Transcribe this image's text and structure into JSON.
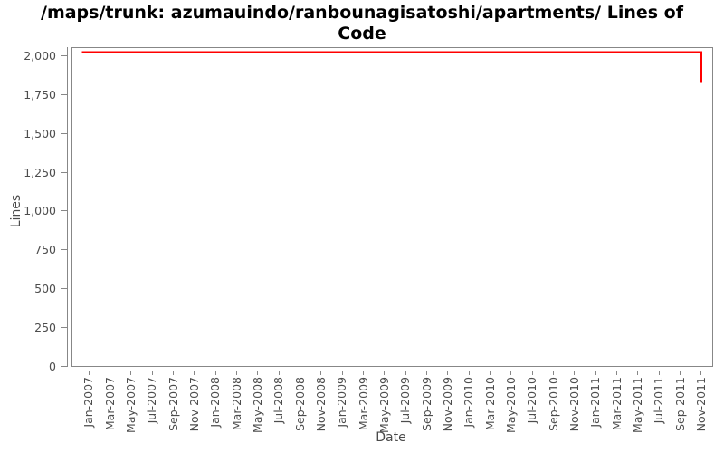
{
  "chart_title": {
    "lines": [
      "/maps/trunk: azumauindo/ranbounagisatoshi/apartments/ Lines of",
      "Code"
    ]
  },
  "chart_data": {
    "type": "line",
    "title": "/maps/trunk: azumauindo/ranbounagisatoshi/apartments/ Lines of Code",
    "xlabel": "Date",
    "ylabel": "Lines",
    "grid": "off",
    "legend": "none",
    "ylim": [
      0,
      2055
    ],
    "y_tick_labels": [
      "0",
      "250",
      "500",
      "750",
      "1,000",
      "1,250",
      "1,500",
      "1,750",
      "2,000"
    ],
    "y_tick_values": [
      0,
      250,
      500,
      750,
      1000,
      1250,
      1500,
      1750,
      2000
    ],
    "x_tick_labels": [
      "Jan-2007",
      "Mar-2007",
      "May-2007",
      "Jul-2007",
      "Sep-2007",
      "Nov-2007",
      "Jan-2008",
      "Mar-2008",
      "May-2008",
      "Jul-2008",
      "Sep-2008",
      "Nov-2008",
      "Jan-2009",
      "Mar-2009",
      "May-2009",
      "Jul-2009",
      "Sep-2009",
      "Nov-2009",
      "Jan-2010",
      "Mar-2010",
      "May-2010",
      "Jul-2010",
      "Sep-2010",
      "Nov-2010",
      "Jan-2011",
      "Mar-2011",
      "May-2011",
      "Jul-2011",
      "Sep-2011",
      "Nov-2011"
    ],
    "series": [
      {
        "name": "Lines of Code",
        "color": "#ff0000",
        "values": [
          2025,
          2025,
          2025,
          2025,
          2025,
          2025,
          2025,
          2025,
          2025,
          2025,
          2025,
          2025,
          2025,
          2025,
          2025,
          2025,
          2025,
          2025,
          2025,
          2025,
          2025,
          2025,
          2025,
          2025,
          2025,
          2025,
          2025,
          2025,
          2025,
          1825
        ],
        "path_points": [
          {
            "date": "Dec-2006",
            "month_index": -0.65,
            "value": 2025
          },
          {
            "date": "Nov-2011",
            "month_index": 58,
            "value": 2025
          },
          {
            "date": "Nov-2011",
            "month_index": 58,
            "value": 1825
          }
        ]
      }
    ],
    "axis_color": "#878787",
    "tick_label_color": "#4d4d4d"
  }
}
